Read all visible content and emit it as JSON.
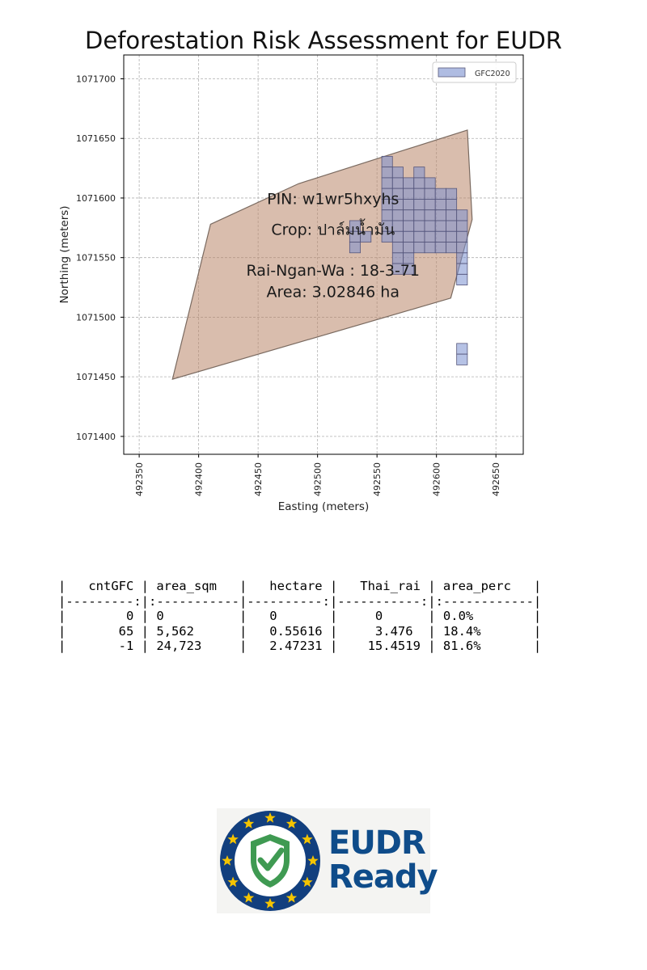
{
  "chart_data": {
    "type": "map",
    "title": "Deforestation Risk Assessment for EUDR",
    "xlabel": "Easting (meters)",
    "ylabel": "Northing (meters)",
    "xlim": [
      492337,
      492673
    ],
    "ylim": [
      1071385,
      1071720
    ],
    "xticks": [
      492350,
      492400,
      492450,
      492500,
      492550,
      492600,
      492650
    ],
    "yticks": [
      1071400,
      1071450,
      1071500,
      1071550,
      1071600,
      1071650,
      1071700
    ],
    "grid": true,
    "legend": {
      "position": "top-right",
      "entries": [
        {
          "label": "GFC2020",
          "color": "#7a8fcf"
        }
      ]
    },
    "plot_polygon": {
      "fill": "#b9876a",
      "edge": "#7a6a60",
      "vertices": [
        [
          492378,
          1071448
        ],
        [
          492410,
          1071578
        ],
        [
          492484,
          1071612
        ],
        [
          492626,
          1071657
        ],
        [
          492630,
          1071582
        ],
        [
          492612,
          1071516
        ]
      ]
    },
    "gfc_cell_size": 9,
    "gfc_cells": [
      [
        492554,
        1071626
      ],
      [
        492554,
        1071617
      ],
      [
        492563,
        1071617
      ],
      [
        492581,
        1071617
      ],
      [
        492554,
        1071608
      ],
      [
        492563,
        1071608
      ],
      [
        492572,
        1071608
      ],
      [
        492581,
        1071608
      ],
      [
        492590,
        1071608
      ],
      [
        492554,
        1071599
      ],
      [
        492563,
        1071599
      ],
      [
        492572,
        1071599
      ],
      [
        492581,
        1071599
      ],
      [
        492590,
        1071599
      ],
      [
        492599,
        1071599
      ],
      [
        492608,
        1071599
      ],
      [
        492554,
        1071590
      ],
      [
        492563,
        1071590
      ],
      [
        492572,
        1071590
      ],
      [
        492581,
        1071590
      ],
      [
        492590,
        1071590
      ],
      [
        492599,
        1071590
      ],
      [
        492608,
        1071590
      ],
      [
        492554,
        1071581
      ],
      [
        492563,
        1071581
      ],
      [
        492572,
        1071581
      ],
      [
        492581,
        1071581
      ],
      [
        492590,
        1071581
      ],
      [
        492599,
        1071581
      ],
      [
        492608,
        1071581
      ],
      [
        492617,
        1071581
      ],
      [
        492527,
        1071572
      ],
      [
        492554,
        1071572
      ],
      [
        492563,
        1071572
      ],
      [
        492572,
        1071572
      ],
      [
        492581,
        1071572
      ],
      [
        492590,
        1071572
      ],
      [
        492599,
        1071572
      ],
      [
        492608,
        1071572
      ],
      [
        492617,
        1071572
      ],
      [
        492527,
        1071563
      ],
      [
        492536,
        1071563
      ],
      [
        492554,
        1071563
      ],
      [
        492563,
        1071563
      ],
      [
        492572,
        1071563
      ],
      [
        492581,
        1071563
      ],
      [
        492590,
        1071563
      ],
      [
        492599,
        1071563
      ],
      [
        492608,
        1071563
      ],
      [
        492617,
        1071563
      ],
      [
        492527,
        1071554
      ],
      [
        492563,
        1071554
      ],
      [
        492572,
        1071554
      ],
      [
        492581,
        1071554
      ],
      [
        492590,
        1071554
      ],
      [
        492599,
        1071554
      ],
      [
        492608,
        1071554
      ],
      [
        492617,
        1071554
      ],
      [
        492563,
        1071545
      ],
      [
        492572,
        1071545
      ],
      [
        492617,
        1071545
      ],
      [
        492563,
        1071536
      ],
      [
        492572,
        1071536
      ],
      [
        492617,
        1071536
      ],
      [
        492617,
        1071527
      ],
      [
        492617,
        1071469
      ],
      [
        492617,
        1071460
      ]
    ],
    "annotations": [
      {
        "text": "PIN: w1wr5hxyhs",
        "x": 492513,
        "y": 1071595
      },
      {
        "text": "Crop: ปาล์มน้ำมัน",
        "x": 492513,
        "y": 1071569
      },
      {
        "text": "Rai-Ngan-Wa : 18-3-71",
        "x": 492513,
        "y": 1071535
      },
      {
        "text": "Area: 3.02846 ha",
        "x": 492513,
        "y": 1071517
      }
    ]
  },
  "stats_table": {
    "lines": [
      "|   cntGFC | area_sqm   |   hectare |   Thai_rai | area_perc   |",
      "|---------:|:-----------|----------:|-----------:|:------------|",
      "|        0 | 0          |   0       |     0      | 0.0%        |",
      "|       65 | 5,562      |   0.55616 |     3.476  | 18.4%       |",
      "|       -1 | 24,723     |   2.47231 |    15.4519 | 81.6%       |"
    ]
  },
  "logo": {
    "word1": "EUDR",
    "word2": "Ready",
    "ring_color": "#123f7e",
    "star_color": "#f5c400",
    "shield_color": "#3f9a52"
  }
}
